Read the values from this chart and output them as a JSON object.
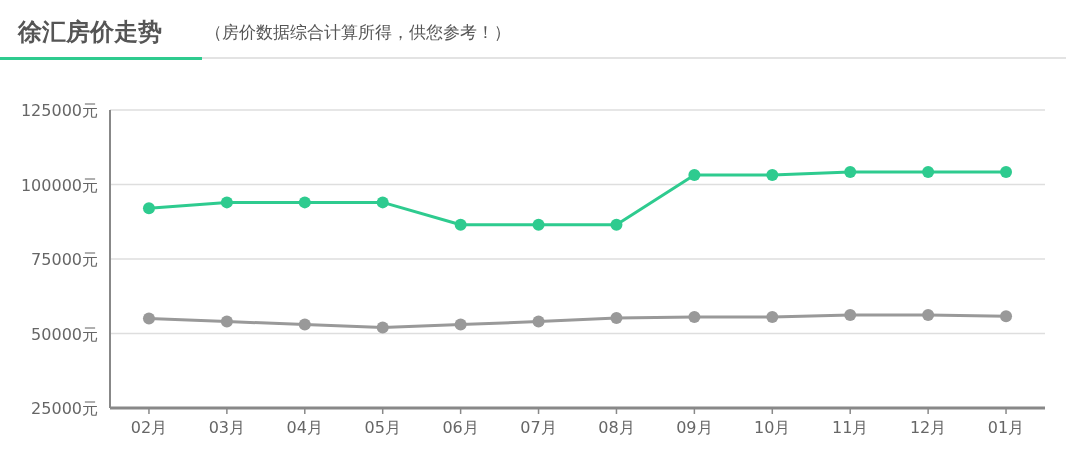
{
  "chart_data": {
    "type": "line",
    "title": "徐汇房价走势",
    "subtitle": "（房价数据综合计算所得，供您参考！）",
    "categories": [
      "02月",
      "03月",
      "04月",
      "05月",
      "06月",
      "07月",
      "08月",
      "09月",
      "10月",
      "11月",
      "12月",
      "01月"
    ],
    "series": [
      {
        "color": "#2ecb8f",
        "values": [
          92000,
          94000,
          94000,
          94000,
          86500,
          86500,
          86500,
          103200,
          103200,
          104200,
          104200,
          104200
        ]
      },
      {
        "color": "#999999",
        "values": [
          55000,
          54000,
          53000,
          52000,
          53000,
          54000,
          55200,
          55500,
          55500,
          56200,
          56200,
          55800
        ]
      }
    ],
    "ylim": [
      25000,
      125000
    ],
    "yticks": [
      {
        "value": 25000,
        "label": "25000元"
      },
      {
        "value": 50000,
        "label": "50000元"
      },
      {
        "value": 75000,
        "label": "75000元"
      },
      {
        "value": 100000,
        "label": "100000元"
      },
      {
        "value": 125000,
        "label": "125000元"
      }
    ],
    "grid": "y",
    "marker": "circle",
    "line_style": "solid"
  }
}
